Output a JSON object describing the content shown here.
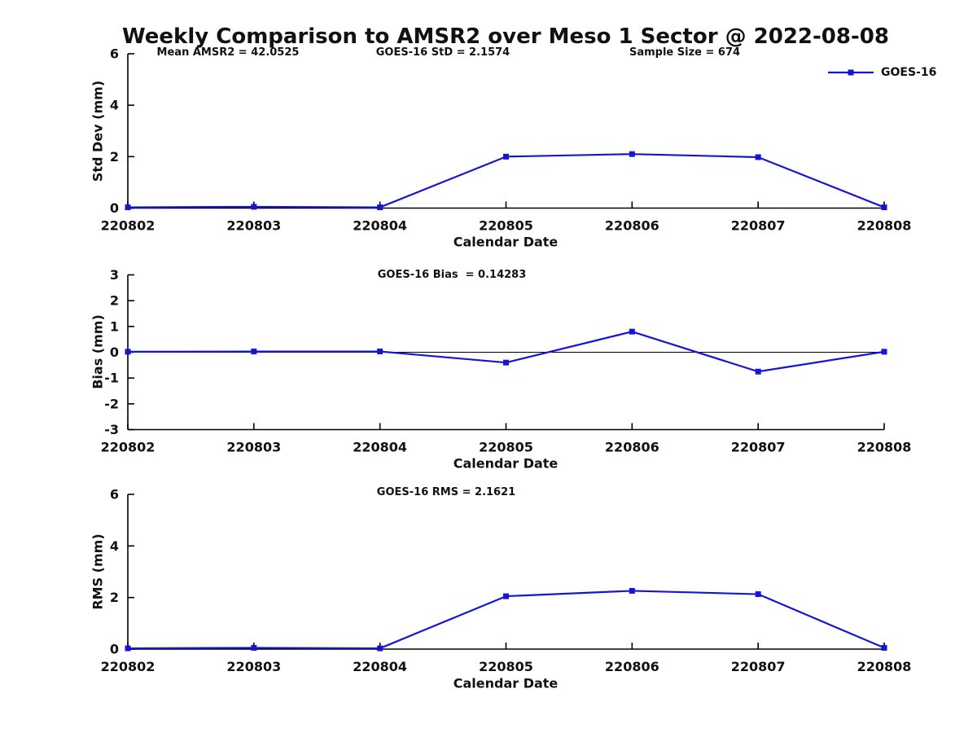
{
  "title": "Weekly Comparison to AMSR2 over Meso 1 Sector @ 2022-08-08",
  "legend": {
    "label": "GOES-16"
  },
  "colors": {
    "line": "#1616d2",
    "axis": "#000000",
    "text": "#111111"
  },
  "xlabel": "Calendar Date",
  "x_categories": [
    "220802",
    "220803",
    "220804",
    "220805",
    "220806",
    "220807",
    "220808"
  ],
  "chart_data": [
    {
      "type": "line",
      "title": "Std Dev subplot",
      "categories": [
        "220802",
        "220803",
        "220804",
        "220805",
        "220806",
        "220807",
        "220808"
      ],
      "series": [
        {
          "name": "GOES-16",
          "values": [
            0.03,
            0.05,
            0.03,
            2.0,
            2.1,
            1.98,
            0.03
          ]
        }
      ],
      "xlabel": "Calendar Date",
      "ylabel": "Std Dev (mm)",
      "ylim": [
        0,
        6
      ],
      "yticks": [
        0,
        2,
        4,
        6
      ],
      "zero_line": false,
      "grid": false,
      "legend_position": "upper-right",
      "annotations": [
        "Mean AMSR2 = 42.0525",
        "GOES-16 StD = 2.1574",
        "Sample Size = 674"
      ]
    },
    {
      "type": "line",
      "title": "Bias subplot",
      "categories": [
        "220802",
        "220803",
        "220804",
        "220805",
        "220806",
        "220807",
        "220808"
      ],
      "series": [
        {
          "name": "GOES-16",
          "values": [
            0.02,
            0.03,
            0.03,
            -0.4,
            0.8,
            -0.75,
            0.02
          ]
        }
      ],
      "xlabel": "Calendar Date",
      "ylabel": "Bias (mm)",
      "ylim": [
        -3,
        3
      ],
      "yticks": [
        -3,
        -2,
        -1,
        0,
        1,
        2,
        3
      ],
      "zero_line": true,
      "grid": false,
      "annotations": [
        "GOES-16 Bias  = 0.14283"
      ]
    },
    {
      "type": "line",
      "title": "RMS subplot",
      "categories": [
        "220802",
        "220803",
        "220804",
        "220805",
        "220806",
        "220807",
        "220808"
      ],
      "series": [
        {
          "name": "GOES-16",
          "values": [
            0.03,
            0.05,
            0.03,
            2.05,
            2.26,
            2.13,
            0.05
          ]
        }
      ],
      "xlabel": "Calendar Date",
      "ylabel": "RMS (mm)",
      "ylim": [
        0,
        6
      ],
      "yticks": [
        0,
        2,
        4,
        6
      ],
      "zero_line": false,
      "grid": false,
      "annotations": [
        "GOES-16 RMS = 2.1621"
      ]
    }
  ]
}
